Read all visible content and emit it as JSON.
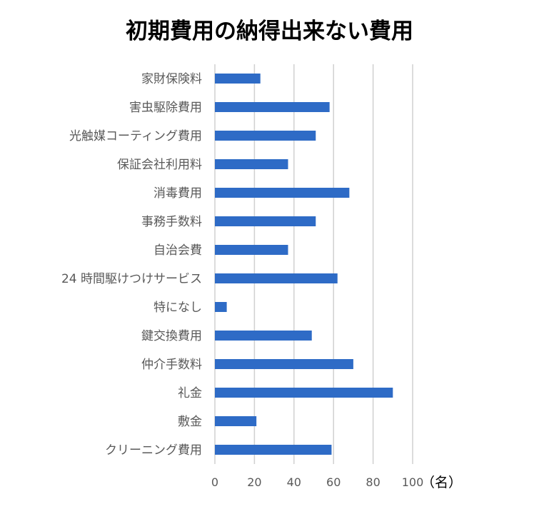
{
  "chart_data": {
    "type": "bar",
    "orientation": "horizontal",
    "title": "初期費用の納得出来ない費用",
    "unit": "（名）",
    "categories": [
      "家財保険料",
      "害虫駆除費用",
      "光触媒コーティング費用",
      "保証会社利用料",
      "消毒費用",
      "事務手数料",
      "自治会費",
      "24 時間駆けつけサービス",
      "特になし",
      "鍵交換費用",
      "仲介手数料",
      "礼金",
      "敷金",
      "クリーニング費用"
    ],
    "values": [
      23,
      58,
      51,
      37,
      68,
      51,
      37,
      62,
      6,
      49,
      70,
      90,
      21,
      59
    ],
    "xlim": [
      0,
      100
    ],
    "xticks": [
      0,
      20,
      40,
      60,
      80,
      100
    ],
    "grid": true,
    "bar_color": "#2e6bc6",
    "grid_color": "#d0d0d0"
  }
}
